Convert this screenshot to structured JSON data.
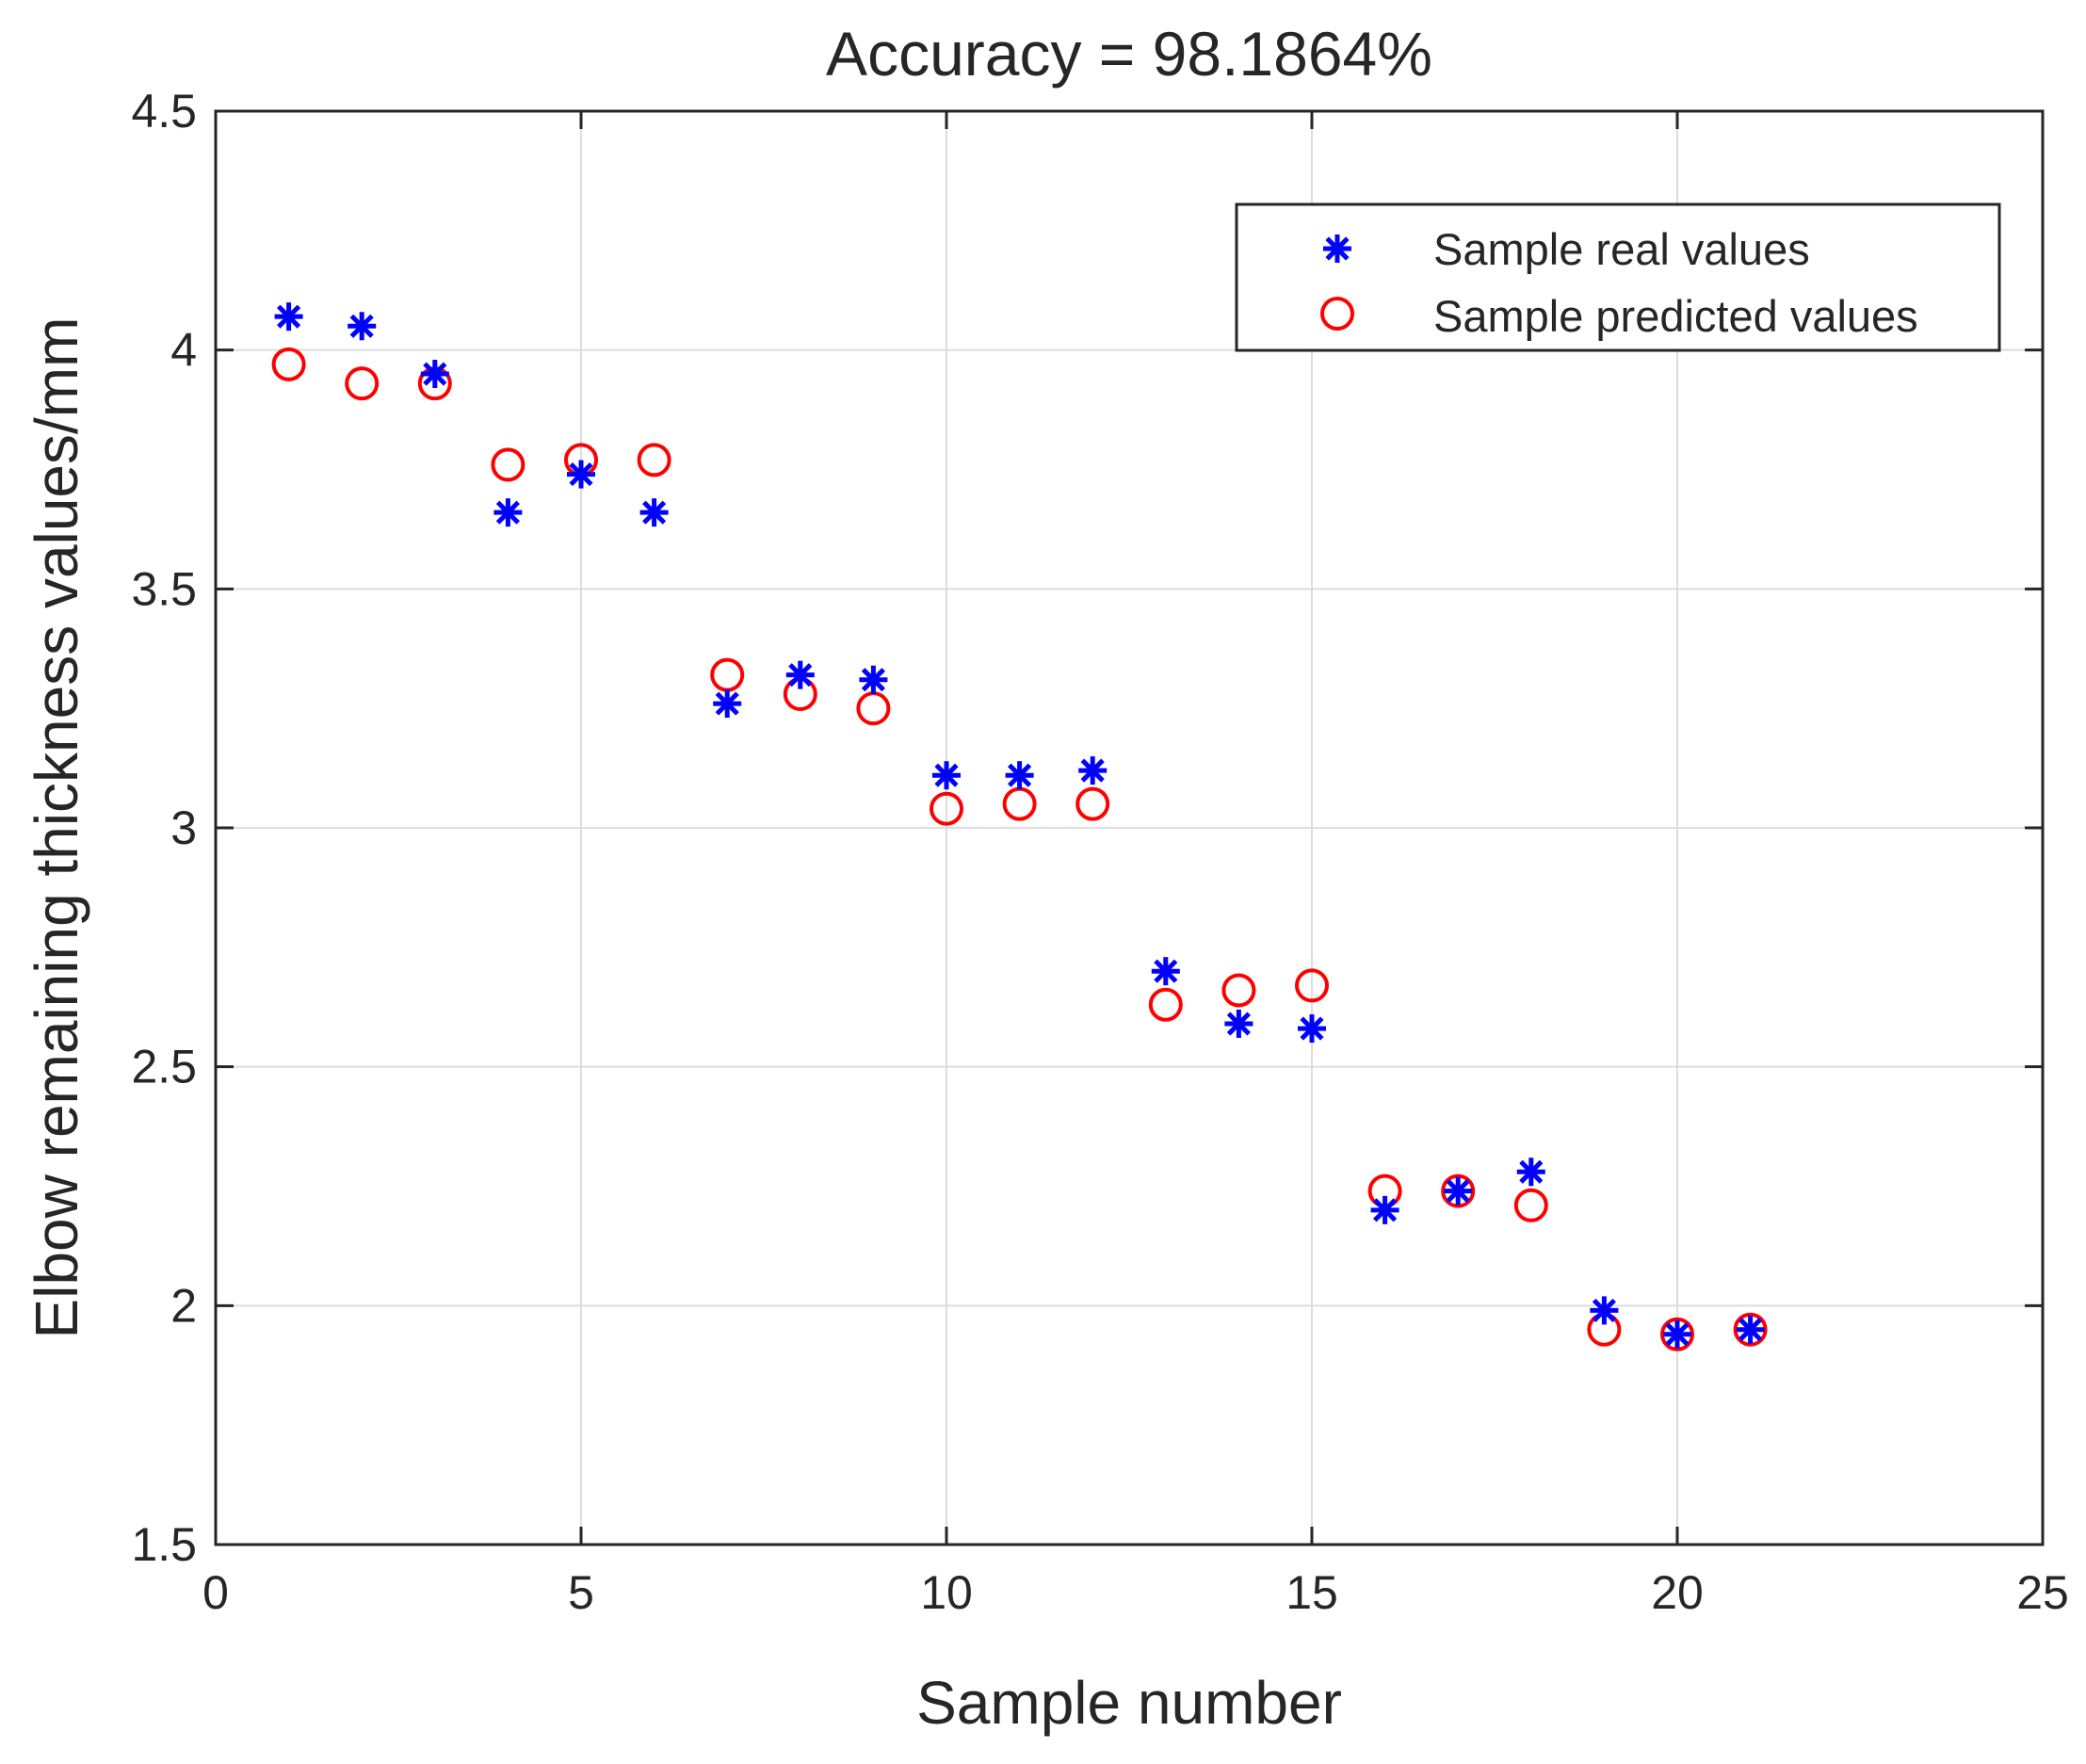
{
  "chart_data": {
    "type": "scatter",
    "title": "Accuracy = 98.1864%",
    "xlabel": "Sample number",
    "ylabel": "Elbow remaining thickness values/mm",
    "xlim": [
      0,
      25
    ],
    "ylim": [
      1.5,
      4.5
    ],
    "xticks": [
      "0",
      "5",
      "10",
      "15",
      "20",
      "25"
    ],
    "yticks": [
      "1.5",
      "2",
      "2.5",
      "3",
      "3.5",
      "4",
      "4.5"
    ],
    "grid": true,
    "legend_position": "top-right",
    "series": [
      {
        "name": "Sample real values",
        "marker": "asterisk",
        "color": "#0000ff",
        "x": [
          1,
          2,
          3,
          4,
          5,
          6,
          7,
          8,
          9,
          10,
          11,
          12,
          13,
          14,
          15,
          16,
          17,
          18,
          19,
          20,
          21
        ],
        "y": [
          4.07,
          4.05,
          3.95,
          3.66,
          3.74,
          3.66,
          3.26,
          3.32,
          3.31,
          3.11,
          3.11,
          3.12,
          2.7,
          2.59,
          2.58,
          2.2,
          2.24,
          2.28,
          1.99,
          1.94,
          1.95
        ]
      },
      {
        "name": "Sample predicted values",
        "marker": "circle",
        "color": "#ff0000",
        "x": [
          1,
          2,
          3,
          4,
          5,
          6,
          7,
          8,
          9,
          10,
          11,
          12,
          13,
          14,
          15,
          16,
          17,
          18,
          19,
          20,
          21
        ],
        "y": [
          3.97,
          3.93,
          3.93,
          3.76,
          3.77,
          3.77,
          3.32,
          3.28,
          3.25,
          3.04,
          3.05,
          3.05,
          2.63,
          2.66,
          2.67,
          2.24,
          2.24,
          2.21,
          1.95,
          1.94,
          1.95
        ]
      }
    ]
  }
}
